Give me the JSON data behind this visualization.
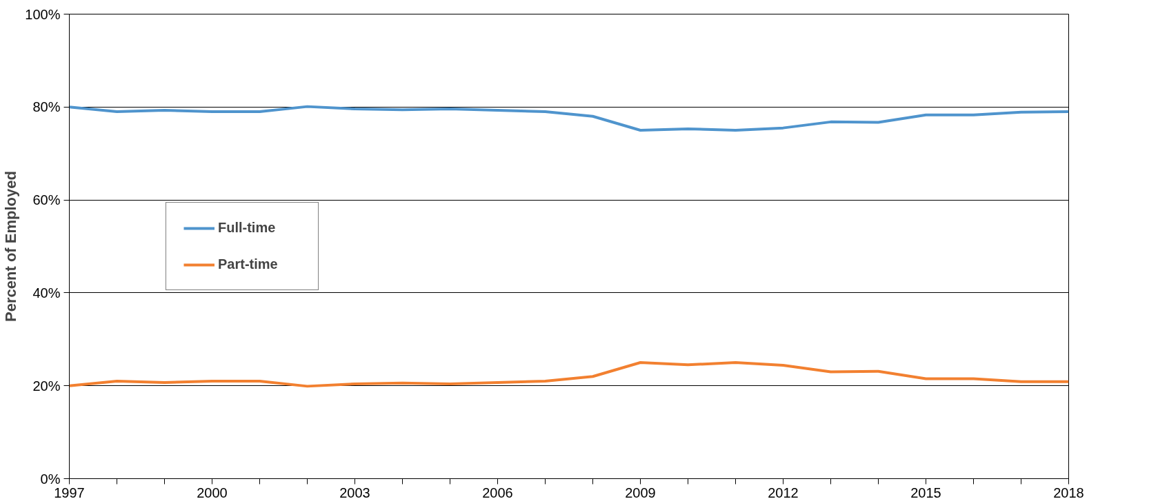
{
  "chart_data": {
    "type": "line",
    "ylabel": "Percent of Employed",
    "x": [
      1997,
      1998,
      1999,
      2000,
      2001,
      2002,
      2003,
      2004,
      2005,
      2006,
      2007,
      2008,
      2009,
      2010,
      2011,
      2012,
      2013,
      2014,
      2015,
      2016,
      2017,
      2018
    ],
    "series": [
      {
        "name": "Full-time",
        "color": "#4f94cd",
        "values": [
          80.0,
          79.0,
          79.3,
          79.0,
          79.0,
          80.1,
          79.6,
          79.4,
          79.6,
          79.3,
          79.0,
          78.0,
          75.0,
          75.3,
          75.0,
          75.5,
          76.8,
          76.7,
          78.3,
          78.3,
          78.9,
          79.0
        ]
      },
      {
        "name": "Part-time",
        "color": "#f28030",
        "values": [
          20.0,
          21.0,
          20.7,
          21.0,
          21.0,
          19.9,
          20.4,
          20.6,
          20.4,
          20.7,
          21.0,
          22.0,
          25.0,
          24.5,
          25.0,
          24.4,
          23.0,
          23.1,
          21.5,
          21.5,
          20.9,
          20.9
        ]
      }
    ],
    "xlim": [
      1997,
      2018
    ],
    "xticks": [
      1997,
      {
        "value": 1998,
        "label": null
      },
      {
        "value": 1999,
        "label": null
      },
      2000,
      {
        "value": 2001,
        "label": null
      },
      {
        "value": 2002,
        "label": null
      },
      2003,
      {
        "value": 2004,
        "label": null
      },
      {
        "value": 2005,
        "label": null
      },
      2006,
      {
        "value": 2007,
        "label": null
      },
      {
        "value": 2008,
        "label": null
      },
      2009,
      {
        "value": 2010,
        "label": null
      },
      {
        "value": 2011,
        "label": null
      },
      2012,
      {
        "value": 2013,
        "label": null
      },
      {
        "value": 2014,
        "label": null
      },
      2015,
      {
        "value": 2016,
        "label": null
      },
      {
        "value": 2017,
        "label": null
      },
      2018
    ],
    "ylim": [
      0,
      100
    ],
    "yticks": [
      {
        "value": 0,
        "label": "0%"
      },
      {
        "value": 20,
        "label": "20%"
      },
      {
        "value": 40,
        "label": "40%"
      },
      {
        "value": 60,
        "label": "60%"
      },
      {
        "value": 80,
        "label": "80%"
      },
      {
        "value": 100,
        "label": "100%"
      }
    ],
    "grid": "y",
    "legend": "left",
    "marker": "none",
    "line_style": "solid"
  }
}
